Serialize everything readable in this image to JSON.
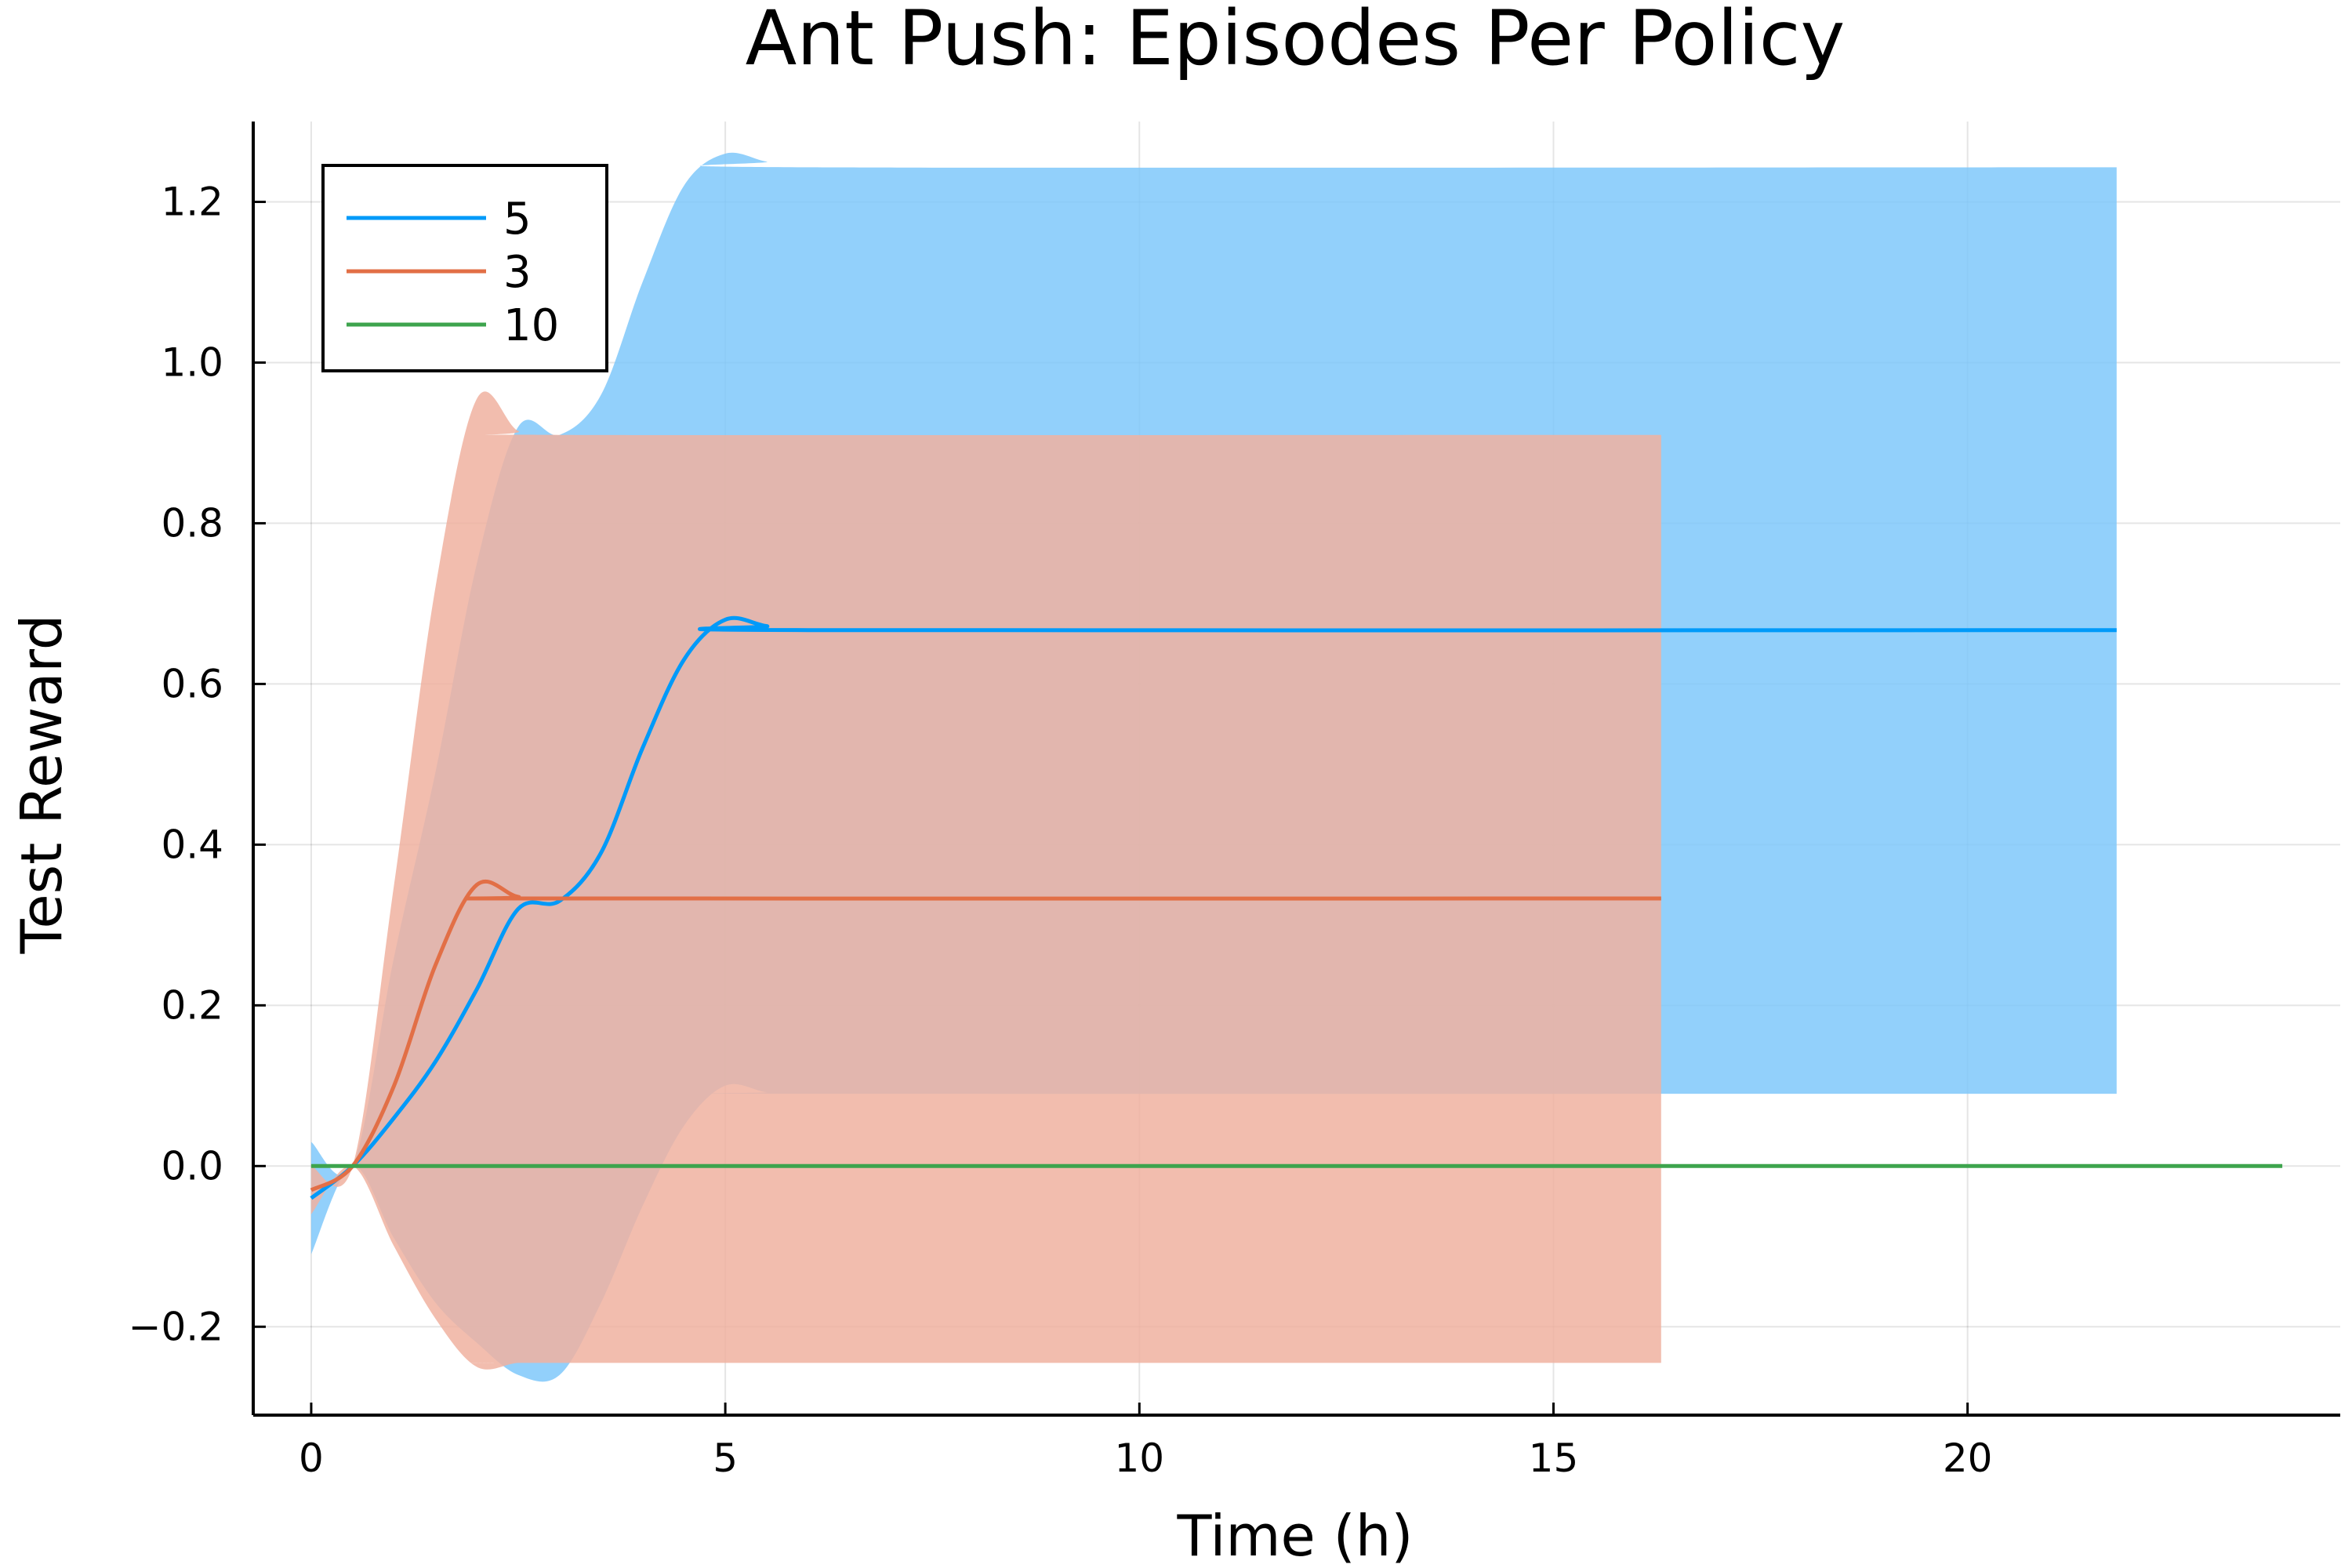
{
  "chart_data": {
    "type": "line",
    "title": "Ant Push: Episodes Per Policy",
    "xlabel": "Time (h)",
    "ylabel": "Test Reward",
    "xlim": [
      -0.7,
      24.5
    ],
    "ylim": [
      -0.31,
      1.3
    ],
    "xticks": [
      0,
      5,
      10,
      15,
      20
    ],
    "xtick_labels": [
      "0",
      "5",
      "10",
      "15",
      "20"
    ],
    "yticks": [
      -0.2,
      0.0,
      0.2,
      0.4,
      0.6,
      0.8,
      1.0,
      1.2
    ],
    "ytick_labels": [
      "−0.2",
      "0.0",
      "0.2",
      "0.4",
      "0.6",
      "0.8",
      "1.0",
      "1.2"
    ],
    "grid": true,
    "legend_position": "top-left",
    "series": [
      {
        "name": "5",
        "color": "#009af9",
        "band_color": "#7fc8fa",
        "points": [
          {
            "x": 0.0,
            "y": -0.04,
            "lo": -0.11,
            "hi": 0.03
          },
          {
            "x": 0.5,
            "y": 0.0,
            "lo": 0.0,
            "hi": 0.0
          },
          {
            "x": 1.0,
            "y": 0.06,
            "lo": -0.09,
            "hi": 0.26
          },
          {
            "x": 1.5,
            "y": 0.13,
            "lo": -0.17,
            "hi": 0.49
          },
          {
            "x": 2.0,
            "y": 0.22,
            "lo": -0.22,
            "hi": 0.75
          },
          {
            "x": 2.5,
            "y": 0.32,
            "lo": -0.26,
            "hi": 0.92
          },
          {
            "x": 3.0,
            "y": 0.33,
            "lo": -0.26,
            "hi": 0.91
          },
          {
            "x": 3.5,
            "y": 0.39,
            "lo": -0.17,
            "hi": 0.96
          },
          {
            "x": 4.0,
            "y": 0.52,
            "lo": -0.05,
            "hi": 1.1
          },
          {
            "x": 4.5,
            "y": 0.63,
            "lo": 0.05,
            "hi": 1.22
          },
          {
            "x": 5.0,
            "y": 0.68,
            "lo": 0.1,
            "hi": 1.26
          },
          {
            "x": 5.5,
            "y": 0.672,
            "lo": 0.092,
            "hi": 1.25
          },
          {
            "x": 6.0,
            "y": 0.667,
            "lo": 0.09,
            "hi": 1.243
          },
          {
            "x": 21.8,
            "y": 0.667,
            "lo": 0.09,
            "hi": 1.243
          }
        ]
      },
      {
        "name": "3",
        "color": "#e26f46",
        "band_color": "#f0b2a0",
        "points": [
          {
            "x": 0.0,
            "y": -0.03,
            "lo": -0.06,
            "hi": 0.0
          },
          {
            "x": 0.5,
            "y": 0.0,
            "lo": 0.0,
            "hi": 0.0
          },
          {
            "x": 1.0,
            "y": 0.1,
            "lo": -0.1,
            "hi": 0.35
          },
          {
            "x": 1.5,
            "y": 0.25,
            "lo": -0.19,
            "hi": 0.72
          },
          {
            "x": 2.0,
            "y": 0.35,
            "lo": -0.25,
            "hi": 0.955
          },
          {
            "x": 2.5,
            "y": 0.335,
            "lo": -0.245,
            "hi": 0.915
          },
          {
            "x": 3.0,
            "y": 0.333,
            "lo": -0.245,
            "hi": 0.91
          },
          {
            "x": 16.3,
            "y": 0.333,
            "lo": -0.245,
            "hi": 0.91
          }
        ]
      },
      {
        "name": "10",
        "color": "#3da44d",
        "band_color": "#9fd2a6",
        "points": [
          {
            "x": 0.0,
            "y": 0.0,
            "lo": 0.0,
            "hi": 0.0
          },
          {
            "x": 23.8,
            "y": 0.0,
            "lo": 0.0,
            "hi": 0.0
          }
        ]
      }
    ]
  }
}
